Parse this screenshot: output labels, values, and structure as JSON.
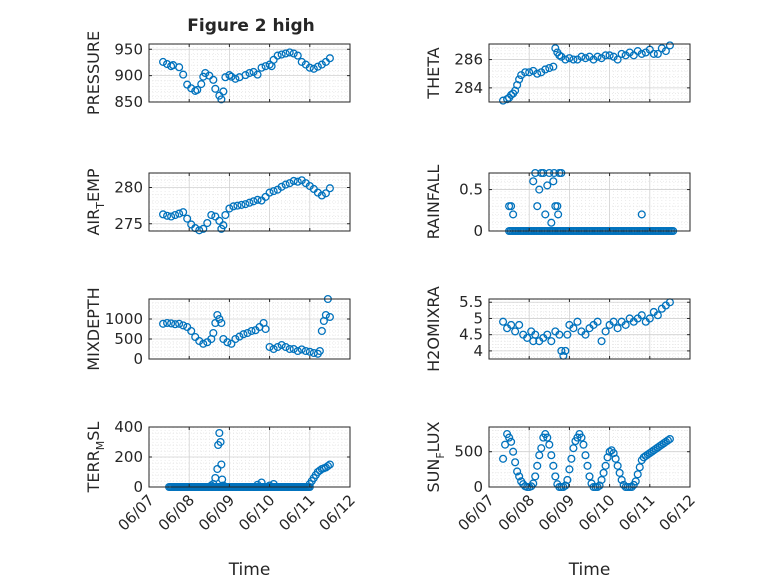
{
  "figure": {
    "title": "Figure 2 high"
  },
  "colors": {
    "marker": "#0072BD",
    "grid": "#d0d0d0",
    "minorGrid": "#e3e3e3",
    "axis": "#262626",
    "background": "#ffffff"
  },
  "chart_data": [
    {
      "type": "scatter",
      "marker": "open-circle",
      "grid": true,
      "minor_grid": true,
      "title": "Figure 2 high",
      "ylabel": "PRESSURE",
      "ylim": [
        850,
        960
      ],
      "yticks": [
        850,
        900,
        950
      ],
      "ytick_labels": [
        "850",
        "900",
        "950"
      ],
      "x_start": "06/07",
      "xlim": [
        0,
        5
      ],
      "xticks": [
        0,
        1,
        2,
        3,
        4,
        5
      ],
      "xtick_labels": [
        "06/07",
        "06/08",
        "06/09",
        "06/10",
        "06/11",
        "06/12"
      ],
      "show_xticklabels": false,
      "series": [
        {
          "x": [
            0.35,
            0.45,
            0.55,
            0.6,
            0.75,
            0.85,
            0.95,
            1.05,
            1.15,
            1.2,
            1.3,
            1.35,
            1.4,
            1.5,
            1.6,
            1.65,
            1.75,
            1.8,
            1.85,
            1.9,
            2.0,
            2.05,
            2.15,
            2.25,
            2.4,
            2.5,
            2.6,
            2.7,
            2.8,
            2.9,
            3.0,
            3.05,
            3.1,
            3.2,
            3.3,
            3.4,
            3.5,
            3.6,
            3.7,
            3.8,
            3.9,
            4.0,
            4.1,
            4.2,
            4.3,
            4.4,
            4.5
          ],
          "y": [
            926,
            922,
            918,
            920,
            916,
            902,
            883,
            876,
            871,
            873,
            884,
            898,
            905,
            900,
            892,
            875,
            862,
            855,
            870,
            897,
            901,
            898,
            894,
            897,
            901,
            905,
            907,
            902,
            915,
            918,
            921,
            918,
            930,
            938,
            940,
            942,
            944,
            942,
            938,
            926,
            921,
            915,
            913,
            917,
            921,
            926,
            933
          ]
        }
      ]
    },
    {
      "type": "scatter",
      "marker": "open-circle",
      "grid": true,
      "minor_grid": true,
      "ylabel": "THETA",
      "ylim": [
        283,
        287.1
      ],
      "yticks": [
        284,
        286
      ],
      "ytick_labels": [
        "284",
        "286"
      ],
      "x_start": "06/07",
      "xlim": [
        0,
        5
      ],
      "xticks": [
        0,
        1,
        2,
        3,
        4,
        5
      ],
      "xtick_labels": [
        "06/07",
        "06/08",
        "06/09",
        "06/10",
        "06/11",
        "06/12"
      ],
      "show_xticklabels": false,
      "series": [
        {
          "x": [
            0.35,
            0.45,
            0.5,
            0.55,
            0.6,
            0.65,
            0.7,
            0.75,
            0.8,
            0.9,
            1.0,
            1.1,
            1.2,
            1.3,
            1.4,
            1.5,
            1.6,
            1.65,
            1.7,
            1.75,
            1.8,
            1.9,
            2.0,
            2.1,
            2.2,
            2.3,
            2.4,
            2.5,
            2.6,
            2.7,
            2.8,
            2.9,
            3.0,
            3.1,
            3.2,
            3.3,
            3.4,
            3.5,
            3.6,
            3.7,
            3.8,
            3.9,
            4.0,
            4.1,
            4.2,
            4.3,
            4.4,
            4.5
          ],
          "y": [
            283.1,
            283.2,
            283.3,
            283.5,
            283.6,
            283.8,
            284.2,
            284.6,
            284.9,
            285.1,
            285.1,
            285.2,
            285.0,
            285.1,
            285.3,
            285.4,
            285.5,
            286.8,
            286.5,
            286.3,
            286.2,
            286.0,
            286.1,
            286.0,
            286.0,
            286.2,
            286.1,
            286.2,
            286.0,
            286.2,
            286.1,
            286.3,
            286.3,
            286.2,
            286.0,
            286.4,
            286.3,
            286.5,
            286.3,
            286.6,
            286.4,
            286.5,
            286.7,
            286.4,
            286.4,
            286.8,
            286.6,
            287.0
          ]
        }
      ]
    },
    {
      "type": "scatter",
      "marker": "open-circle",
      "grid": true,
      "minor_grid": true,
      "ylabel": "AIR_TEMP",
      "ylim": [
        274,
        282
      ],
      "yticks": [
        275,
        280
      ],
      "ytick_labels": [
        "275",
        "280"
      ],
      "x_start": "06/07",
      "xlim": [
        0,
        5
      ],
      "xticks": [
        0,
        1,
        2,
        3,
        4,
        5
      ],
      "xtick_labels": [
        "06/07",
        "06/08",
        "06/09",
        "06/10",
        "06/11",
        "06/12"
      ],
      "show_xticklabels": false,
      "series": [
        {
          "x": [
            0.35,
            0.45,
            0.55,
            0.65,
            0.75,
            0.85,
            0.95,
            1.05,
            1.15,
            1.25,
            1.35,
            1.45,
            1.55,
            1.65,
            1.75,
            1.8,
            1.85,
            1.9,
            2.0,
            2.1,
            2.2,
            2.3,
            2.4,
            2.5,
            2.6,
            2.7,
            2.8,
            2.9,
            3.0,
            3.1,
            3.2,
            3.3,
            3.4,
            3.5,
            3.6,
            3.7,
            3.8,
            3.9,
            4.0,
            4.1,
            4.2,
            4.3,
            4.4,
            4.5
          ],
          "y": [
            276.3,
            276.1,
            276.0,
            276.2,
            276.4,
            276.6,
            275.7,
            274.9,
            274.4,
            274.1,
            274.3,
            275.1,
            276.2,
            276.0,
            275.4,
            274.3,
            274.8,
            276.2,
            277.1,
            277.4,
            277.5,
            277.6,
            277.7,
            277.9,
            278.1,
            278.3,
            278.2,
            278.7,
            279.3,
            279.5,
            279.7,
            280.1,
            280.4,
            280.6,
            280.9,
            280.8,
            281.0,
            280.6,
            280.2,
            279.8,
            279.3,
            278.9,
            279.2,
            279.9
          ]
        }
      ]
    },
    {
      "type": "scatter",
      "marker": "open-circle",
      "grid": true,
      "minor_grid": true,
      "ylabel": "RAINFALL",
      "ylim": [
        0,
        0.7
      ],
      "yticks": [
        0,
        0.5
      ],
      "ytick_labels": [
        "0",
        "0.5"
      ],
      "x_start": "06/07",
      "xlim": [
        0,
        5
      ],
      "xticks": [
        0,
        1,
        2,
        3,
        4,
        5
      ],
      "xtick_labels": [
        "06/07",
        "06/08",
        "06/09",
        "06/10",
        "06/11",
        "06/12"
      ],
      "show_xticklabels": false,
      "zero_baseline": {
        "x_from": 0.5,
        "x_to": 4.6,
        "step": 0.04,
        "y": 0
      },
      "series": [
        {
          "x": [
            0.5,
            0.55,
            0.6,
            1.1,
            1.15,
            1.2,
            1.25,
            1.3,
            1.35,
            1.4,
            1.45,
            1.5,
            1.55,
            1.6,
            1.62,
            1.65,
            1.7,
            1.72,
            1.75,
            1.8,
            3.8
          ],
          "y": [
            0.3,
            0.3,
            0.2,
            0.6,
            0.7,
            0.3,
            0.5,
            0.7,
            0.7,
            0.2,
            0.55,
            0.7,
            0.1,
            0.6,
            0.7,
            0.3,
            0.3,
            0.2,
            0.7,
            0.7,
            0.2
          ]
        }
      ]
    },
    {
      "type": "scatter",
      "marker": "open-circle",
      "grid": true,
      "minor_grid": true,
      "ylabel": "MIXDEPTH",
      "ylim": [
        0,
        1500
      ],
      "yticks": [
        0,
        500,
        1000
      ],
      "ytick_labels": [
        "0",
        "500",
        "1000"
      ],
      "x_start": "06/07",
      "xlim": [
        0,
        5
      ],
      "xticks": [
        0,
        1,
        2,
        3,
        4,
        5
      ],
      "xtick_labels": [
        "06/07",
        "06/08",
        "06/09",
        "06/10",
        "06/11",
        "06/12"
      ],
      "show_xticklabels": false,
      "series": [
        {
          "x": [
            0.35,
            0.45,
            0.55,
            0.65,
            0.75,
            0.85,
            0.95,
            1.05,
            1.15,
            1.25,
            1.35,
            1.45,
            1.55,
            1.6,
            1.65,
            1.7,
            1.75,
            1.8,
            1.85,
            1.95,
            2.05,
            2.15,
            2.25,
            2.35,
            2.45,
            2.55,
            2.65,
            2.75,
            2.85,
            2.9,
            3.0,
            3.1,
            3.2,
            3.3,
            3.4,
            3.5,
            3.6,
            3.7,
            3.8,
            3.9,
            4.0,
            4.1,
            4.2,
            4.25,
            4.3,
            4.35,
            4.4,
            4.45,
            4.5
          ],
          "y": [
            880,
            900,
            890,
            870,
            880,
            840,
            800,
            700,
            550,
            450,
            380,
            420,
            500,
            650,
            900,
            1100,
            1000,
            900,
            500,
            420,
            380,
            500,
            560,
            620,
            650,
            700,
            720,
            800,
            900,
            750,
            300,
            250,
            300,
            350,
            300,
            250,
            250,
            200,
            240,
            200,
            180,
            150,
            130,
            200,
            700,
            950,
            1100,
            1500,
            1050
          ]
        }
      ]
    },
    {
      "type": "scatter",
      "marker": "open-circle",
      "grid": true,
      "minor_grid": true,
      "ylabel": "H2OMIXRA",
      "ylim": [
        3.75,
        5.6
      ],
      "yticks": [
        4,
        4.5,
        5,
        5.5
      ],
      "ytick_labels": [
        "4",
        "4.5",
        "5",
        "5.5"
      ],
      "x_start": "06/07",
      "xlim": [
        0,
        5
      ],
      "xticks": [
        0,
        1,
        2,
        3,
        4,
        5
      ],
      "xtick_labels": [
        "06/07",
        "06/08",
        "06/09",
        "06/10",
        "06/11",
        "06/12"
      ],
      "show_xticklabels": false,
      "series": [
        {
          "x": [
            0.35,
            0.45,
            0.55,
            0.65,
            0.75,
            0.85,
            0.95,
            1.05,
            1.1,
            1.15,
            1.25,
            1.35,
            1.45,
            1.55,
            1.65,
            1.75,
            1.8,
            1.85,
            1.9,
            1.95,
            2.0,
            2.1,
            2.2,
            2.3,
            2.4,
            2.5,
            2.6,
            2.7,
            2.8,
            2.9,
            3.0,
            3.1,
            3.2,
            3.3,
            3.4,
            3.5,
            3.6,
            3.7,
            3.8,
            3.9,
            4.0,
            4.1,
            4.2,
            4.3,
            4.4,
            4.5
          ],
          "y": [
            4.9,
            4.7,
            4.8,
            4.6,
            4.8,
            4.5,
            4.4,
            4.6,
            4.3,
            4.5,
            4.3,
            4.4,
            4.5,
            4.3,
            4.6,
            4.5,
            4.0,
            3.85,
            4.0,
            4.5,
            4.8,
            4.7,
            4.9,
            4.6,
            4.5,
            4.7,
            4.8,
            4.9,
            4.3,
            4.6,
            4.8,
            4.9,
            4.7,
            4.9,
            4.8,
            5.0,
            4.9,
            5.0,
            5.1,
            4.9,
            5.0,
            5.2,
            5.1,
            5.3,
            5.4,
            5.5
          ]
        }
      ]
    },
    {
      "type": "scatter",
      "marker": "open-circle",
      "grid": true,
      "minor_grid": true,
      "ylabel": "TERR_MSL",
      "ylim": [
        0,
        400
      ],
      "yticks": [
        0,
        200,
        400
      ],
      "ytick_labels": [
        "0",
        "200",
        "400"
      ],
      "x_start": "06/07",
      "xlim": [
        0,
        5
      ],
      "xticks": [
        0,
        1,
        2,
        3,
        4,
        5
      ],
      "xtick_labels": [
        "06/07",
        "06/08",
        "06/09",
        "06/10",
        "06/11",
        "06/12"
      ],
      "show_xticklabels": true,
      "xlabel": "Time",
      "zero_baseline": {
        "x_from": 0.5,
        "x_to": 4.0,
        "step": 0.035,
        "y": 0
      },
      "series": [
        {
          "x": [
            1.55,
            1.6,
            1.65,
            1.7,
            1.72,
            1.75,
            1.78,
            1.8,
            1.82,
            1.85,
            2.7,
            2.8,
            3.0,
            3.1,
            4.0,
            4.05,
            4.1,
            4.15,
            4.2,
            4.25,
            4.3,
            4.35,
            4.4,
            4.45,
            4.5
          ],
          "y": [
            10,
            20,
            60,
            120,
            280,
            360,
            300,
            150,
            50,
            10,
            15,
            30,
            10,
            20,
            20,
            40,
            60,
            80,
            100,
            110,
            120,
            125,
            130,
            140,
            150
          ]
        }
      ]
    },
    {
      "type": "scatter",
      "marker": "open-circle",
      "grid": true,
      "minor_grid": true,
      "ylabel": "SUN_FLUX",
      "ylim": [
        0,
        850
      ],
      "yticks": [
        0,
        500
      ],
      "ytick_labels": [
        "0",
        "500"
      ],
      "x_start": "06/07",
      "xlim": [
        0,
        5
      ],
      "xticks": [
        0,
        1,
        2,
        3,
        4,
        5
      ],
      "xtick_labels": [
        "06/07",
        "06/08",
        "06/09",
        "06/10",
        "06/11",
        "06/12"
      ],
      "show_xticklabels": true,
      "xlabel": "Time",
      "series": [
        {
          "x": [
            0.35,
            0.4,
            0.45,
            0.5,
            0.55,
            0.6,
            0.65,
            0.7,
            0.75,
            0.8,
            0.85,
            0.9,
            0.95,
            1.0,
            1.05,
            1.1,
            1.15,
            1.2,
            1.25,
            1.3,
            1.35,
            1.4,
            1.45,
            1.5,
            1.55,
            1.6,
            1.65,
            1.7,
            1.75,
            1.8,
            1.85,
            1.9,
            1.95,
            2.0,
            2.05,
            2.1,
            2.15,
            2.2,
            2.25,
            2.3,
            2.35,
            2.4,
            2.45,
            2.5,
            2.55,
            2.6,
            2.65,
            2.7,
            2.75,
            2.8,
            2.85,
            2.9,
            2.95,
            3.0,
            3.05,
            3.1,
            3.15,
            3.2,
            3.25,
            3.3,
            3.35,
            3.4,
            3.45,
            3.5,
            3.55,
            3.6,
            3.65,
            3.7,
            3.75,
            3.8,
            3.85,
            3.9,
            3.95,
            4.0,
            4.05,
            4.1,
            4.15,
            4.2,
            4.25,
            4.3,
            4.35,
            4.4,
            4.45,
            4.5
          ],
          "y": [
            400,
            600,
            750,
            700,
            640,
            500,
            350,
            220,
            150,
            80,
            40,
            10,
            0,
            0,
            10,
            50,
            150,
            300,
            450,
            550,
            700,
            750,
            700,
            600,
            450,
            300,
            150,
            40,
            0,
            0,
            0,
            20,
            100,
            250,
            400,
            550,
            650,
            700,
            750,
            700,
            600,
            450,
            300,
            150,
            50,
            0,
            0,
            0,
            20,
            100,
            200,
            300,
            420,
            500,
            520,
            480,
            400,
            300,
            200,
            100,
            30,
            0,
            0,
            0,
            0,
            30,
            80,
            180,
            280,
            380,
            420,
            440,
            460,
            480,
            500,
            520,
            540,
            560,
            580,
            600,
            620,
            640,
            660,
            680
          ]
        }
      ]
    }
  ]
}
